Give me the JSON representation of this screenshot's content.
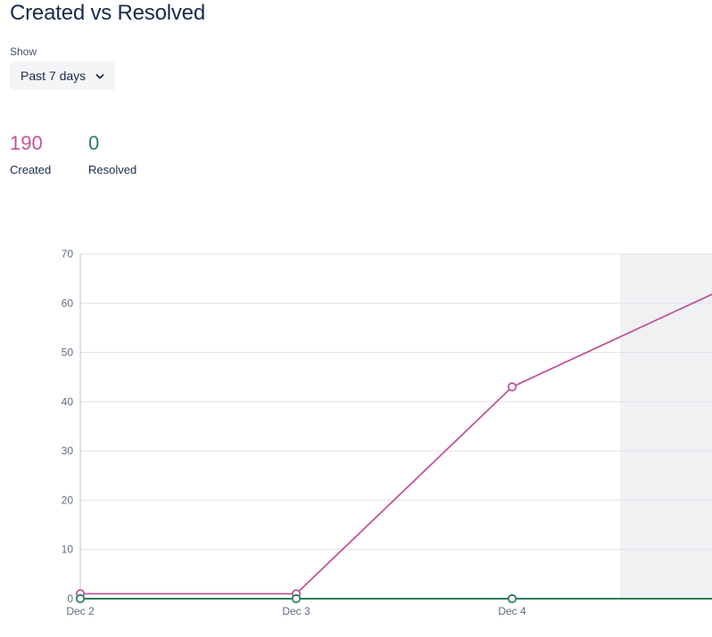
{
  "title": "Created vs Resolved",
  "filter": {
    "label": "Show",
    "selected": "Past 7 days"
  },
  "stats": {
    "created": {
      "value": "190",
      "label": "Created",
      "color": "#c0559a"
    },
    "resolved": {
      "value": "0",
      "label": "Resolved",
      "color": "#2d7e5a"
    }
  },
  "icons": {
    "dropdown": "chevron-down-icon"
  },
  "chart_data": {
    "type": "line",
    "categories": [
      "Dec 2",
      "Dec 3",
      "Dec 4"
    ],
    "x_extent_days": [
      0,
      2.96
    ],
    "ylim": [
      0,
      70
    ],
    "yticks": [
      0,
      10,
      20,
      30,
      40,
      50,
      60,
      70
    ],
    "grid": true,
    "legend": "none",
    "highlight_from_day": 2.5,
    "series": [
      {
        "key": "created",
        "color": "#c0559a",
        "points": [
          {
            "day": 0,
            "value": 1
          },
          {
            "day": 1,
            "value": 1
          },
          {
            "day": 2,
            "value": 43
          },
          {
            "day": 2.96,
            "value": 62.5,
            "marker": false
          }
        ]
      },
      {
        "key": "resolved",
        "color": "#2d7e5a",
        "points": [
          {
            "day": 0,
            "value": 0
          },
          {
            "day": 1,
            "value": 0
          },
          {
            "day": 2,
            "value": 0
          },
          {
            "day": 2.96,
            "value": 0,
            "marker": false
          }
        ]
      }
    ]
  }
}
